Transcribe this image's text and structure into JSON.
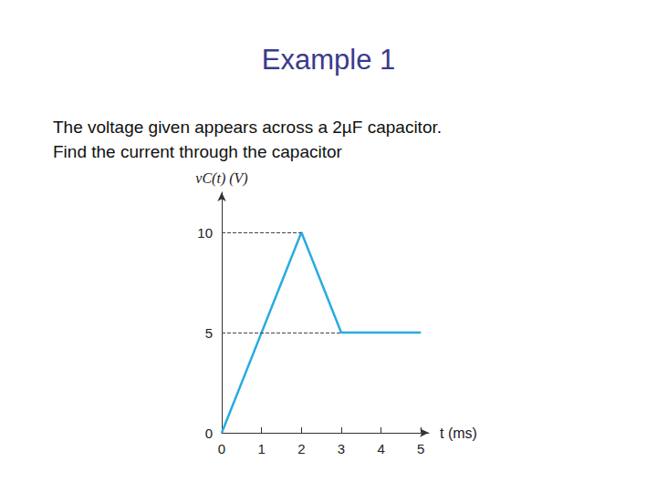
{
  "header": {
    "title": "Example 1",
    "lines": [
      "The voltage given appears across a 2µF capacitor.",
      "Find the current through the capacitor"
    ]
  },
  "chart_data": {
    "type": "line",
    "x": [
      0,
      2,
      3,
      5
    ],
    "values": [
      0,
      10,
      5,
      5
    ],
    "color": "#29abe2",
    "xlim": [
      0,
      5.2
    ],
    "ylim": [
      0,
      12
    ],
    "xticks": [
      0,
      1,
      2,
      3,
      4,
      5
    ],
    "yticks": [
      0,
      5,
      10
    ],
    "x_label": "t (ms)",
    "y_label": "vC(t) (V)",
    "grid": false,
    "marker": "none"
  }
}
